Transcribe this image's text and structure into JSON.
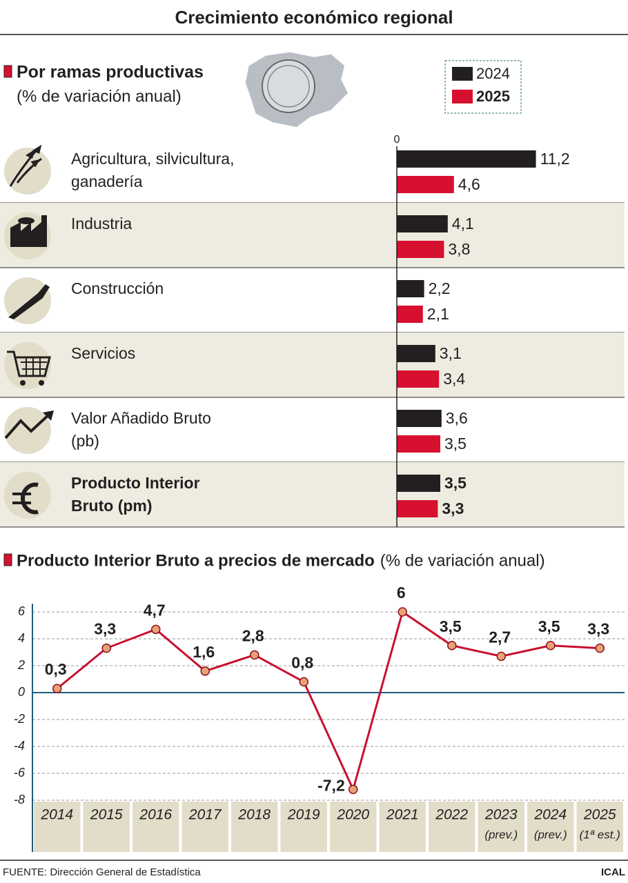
{
  "title": "Crecimiento económico regional",
  "source": "FUENTE: Dirección General de Estadística",
  "credit": "ICAL",
  "chart_data": [
    {
      "type": "hbar",
      "title": "Por ramas productivas",
      "subtitle": "(% de variación anual)",
      "categories": [
        "Agricultura, silvicultura, ganadería",
        "Industria",
        "Construcción",
        "Servicios",
        "Valor Añadido Bruto (pb)",
        "Producto Interior Bruto (pm)"
      ],
      "series": [
        {
          "name": "2024",
          "color": "#231f20",
          "values": [
            11.2,
            4.1,
            2.2,
            3.1,
            3.6,
            3.5
          ],
          "value_labels": [
            "11,2",
            "4,1",
            "2,2",
            "3,1",
            "3,6",
            "3,5"
          ]
        },
        {
          "name": "2025",
          "color": "#d7102f",
          "values": [
            4.6,
            3.8,
            2.1,
            3.4,
            3.5,
            3.3
          ],
          "value_labels": [
            "4,6",
            "3,8",
            "2,1",
            "3,4",
            "3,5",
            "3,3"
          ]
        }
      ],
      "xlim": [
        0,
        15
      ],
      "xticks": [
        0
      ],
      "legend": "top-right"
    },
    {
      "type": "line",
      "title": "Producto Interior Bruto a precios de mercado",
      "subtitle": "(% de variación anual)",
      "categories": [
        "2014",
        "2015",
        "2016",
        "2017",
        "2018",
        "2019",
        "2020",
        "2021",
        "2022",
        "2023",
        "2024",
        "2025"
      ],
      "category_notes": [
        null,
        null,
        null,
        null,
        null,
        null,
        null,
        null,
        null,
        "(prev.)",
        "(prev.)",
        "(1ª est.)"
      ],
      "values": [
        0.3,
        3.3,
        4.7,
        1.6,
        2.8,
        0.8,
        -7.2,
        6,
        3.5,
        2.7,
        3.5,
        3.3
      ],
      "value_labels": [
        "0,3",
        "3,3",
        "4,7",
        "1,6",
        "2,8",
        "0,8",
        "-7,2",
        "6",
        "3,5",
        "2,7",
        "3,5",
        "3,3"
      ],
      "color": "#c8102e",
      "marker_color": "#e9a275",
      "ylim": [
        -8,
        6.6
      ],
      "yticks": [
        6,
        4,
        2,
        0,
        -2,
        -4,
        -6,
        -8
      ],
      "grid": true
    }
  ]
}
